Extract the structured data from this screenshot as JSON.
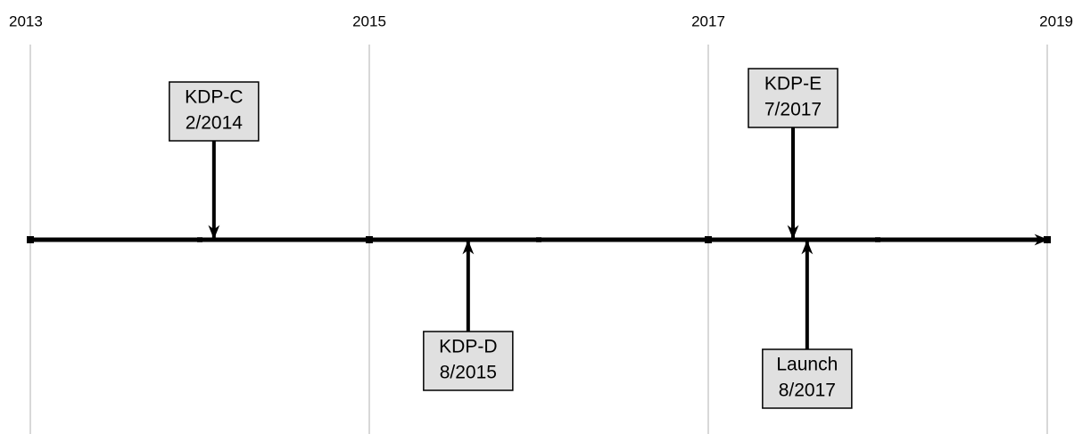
{
  "timeline": {
    "range": [
      2013,
      2019
    ],
    "labeled_years": [
      2013,
      2015,
      2017,
      2019
    ],
    "minor_years": [
      2014,
      2016,
      2018
    ],
    "events": [
      {
        "label": "KDP-C",
        "date": "2/2014",
        "side": "above"
      },
      {
        "label": "KDP-D",
        "date": "8/2015",
        "side": "below"
      },
      {
        "label": "KDP-E",
        "date": "7/2017",
        "side": "above"
      },
      {
        "label": "Launch",
        "date": "8/2017",
        "side": "below"
      }
    ]
  }
}
